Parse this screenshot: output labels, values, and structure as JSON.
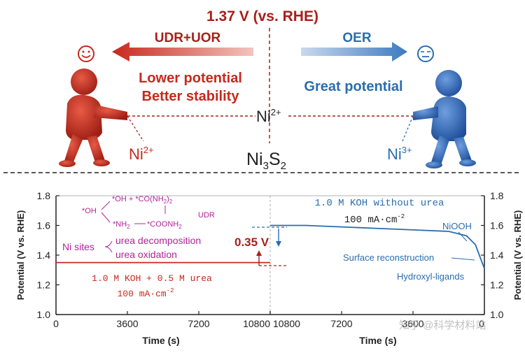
{
  "top": {
    "voltage_label": "1.37 V (vs. RHE)",
    "left_arrow_label": "UDR+UOR",
    "right_arrow_label": "OER",
    "left_line1": "Lower potential",
    "left_line2": "Better stability",
    "right_line1": "Great potential",
    "center_ni": "Ni",
    "center_ni_sup": "2+",
    "bottom_center_ni": "Ni",
    "bottom_center_sub1": "3",
    "bottom_center_s": "S",
    "bottom_center_sub2": "2",
    "left_ni": "Ni",
    "left_ni_sup": "2+",
    "right_ni": "Ni",
    "right_ni_sup": "3+",
    "colors": {
      "red": "#c8281e",
      "blue": "#2a6db0",
      "dark_red": "#a8201a"
    },
    "icons": [
      "happy-face-icon",
      "neutral-face-icon",
      "red-person-figure",
      "blue-person-figure"
    ]
  },
  "plot": {
    "y_label_left": "Potential (V vs. RHE)",
    "y_label_right": "Potential (V vs. RHE)",
    "x_label_left": "Time (s)",
    "x_label_right": "Time (s)",
    "y_ticks": [
      "1.0",
      "1.2",
      "1.4",
      "1.6",
      "1.8"
    ],
    "left_x_ticks": [
      "0",
      "3600",
      "7200",
      "10800"
    ],
    "right_x_ticks": [
      "10800",
      "7200",
      "3600",
      "0"
    ],
    "urea_label_line1": "1.0 M KOH + 0.5 M urea",
    "urea_label_line2": "100 mA·cm",
    "urea_label_sup": "-2",
    "koh_label_line1": "1.0 M KOH without urea",
    "koh_label_line2": "100 mA·cm",
    "koh_label_sup": "-2",
    "delta_label": "0.35 V",
    "nisites_label": "Ni sites",
    "urea_decomp": "urea decomposition",
    "urea_oxid": "urea oxidation",
    "scheme_oh": "*OH",
    "scheme_oh_co": "*OH + *CO(NH",
    "scheme_nh2": "*NH",
    "scheme_coonh2": "*COONH",
    "scheme_udr": "UDR",
    "niooh_label": "NiOOH",
    "surface_recon": "Surface reconstruction",
    "hydroxyl": "Hydroxyl-ligands",
    "watermark": "知乎 @科学材料站"
  },
  "chart_data": [
    {
      "type": "line",
      "series": [
        {
          "name": "1.0 M KOH + 0.5 M urea",
          "x": [
            0,
            10800
          ],
          "y": [
            1.35,
            1.35
          ]
        }
      ],
      "ylim": [
        1.0,
        1.8
      ],
      "xlim": [
        0,
        10800
      ],
      "xlabel": "Time (s)",
      "ylabel": "Potential (V vs. RHE)"
    },
    {
      "type": "line",
      "series": [
        {
          "name": "1.0 M KOH without urea",
          "x": [
            10800,
            9000,
            7200,
            5400,
            3600,
            1800,
            900,
            450,
            200,
            0
          ],
          "y": [
            1.6,
            1.6,
            1.59,
            1.58,
            1.57,
            1.56,
            1.53,
            1.47,
            1.38,
            1.31
          ]
        }
      ],
      "ylim": [
        1.0,
        1.8
      ],
      "xlim": [
        10800,
        0
      ],
      "xlabel": "Time (s)",
      "ylabel": "Potential (V vs. RHE)"
    }
  ]
}
